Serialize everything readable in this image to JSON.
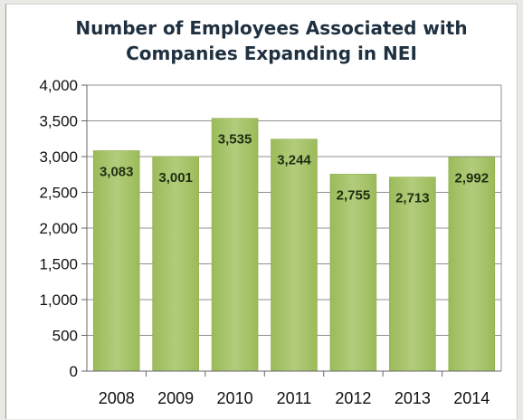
{
  "chart_data": {
    "type": "bar",
    "title_lines": [
      "Number of Employees Associated with",
      "Companies Expanding in NEI"
    ],
    "categories": [
      "2008",
      "2009",
      "2010",
      "2011",
      "2012",
      "2013",
      "2014"
    ],
    "values": [
      3083,
      3001,
      3535,
      3244,
      2755,
      2713,
      2992
    ],
    "data_labels": [
      "3,083",
      "3,001",
      "3,535",
      "3,244",
      "2,755",
      "2,713",
      "2,992"
    ],
    "y_ticks": [
      "0",
      "500",
      "1,000",
      "1,500",
      "2,000",
      "2,500",
      "3,000",
      "3,500",
      "4,000"
    ],
    "ylim": [
      0,
      4000
    ],
    "y_step": 500,
    "grid": true,
    "legend": "none",
    "bar_color": "#9bbb59",
    "bar_gradient_light": "#b2cc7c",
    "grid_color": "#909090"
  }
}
